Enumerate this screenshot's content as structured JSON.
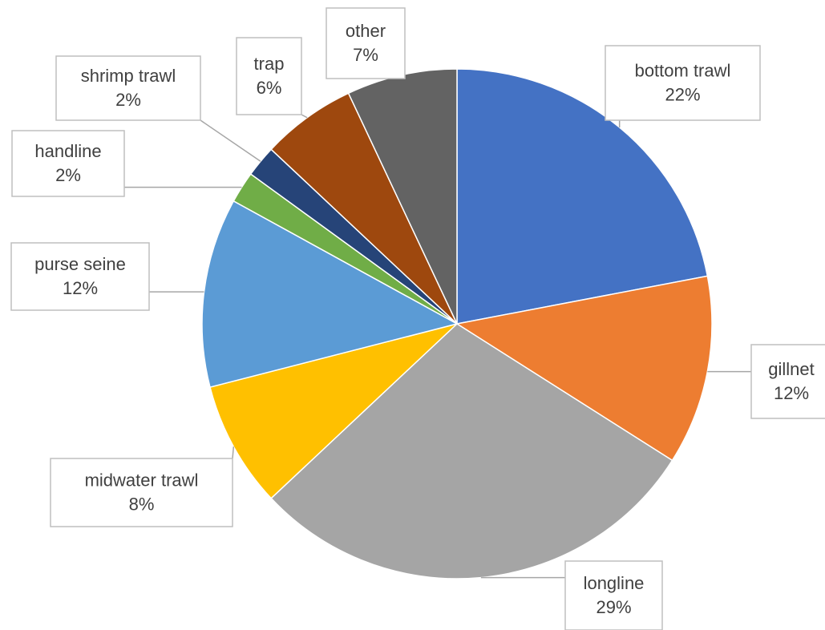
{
  "chart_data": {
    "type": "pie",
    "categories": [
      "bottom trawl",
      "gillnet",
      "longline",
      "midwater trawl",
      "purse seine",
      "handline",
      "shrimp trawl",
      "trap",
      "other"
    ],
    "values": [
      22,
      12,
      29,
      8,
      12,
      2,
      2,
      6,
      7
    ],
    "value_labels": [
      "22%",
      "12%",
      "29%",
      "8%",
      "12%",
      "2%",
      "2%",
      "6%",
      "7%"
    ],
    "colors": [
      "#4472c4",
      "#ed7d31",
      "#a5a5a5",
      "#ffc000",
      "#5b9bd5",
      "#70ad47",
      "#264478",
      "#9e480e",
      "#636363"
    ]
  }
}
